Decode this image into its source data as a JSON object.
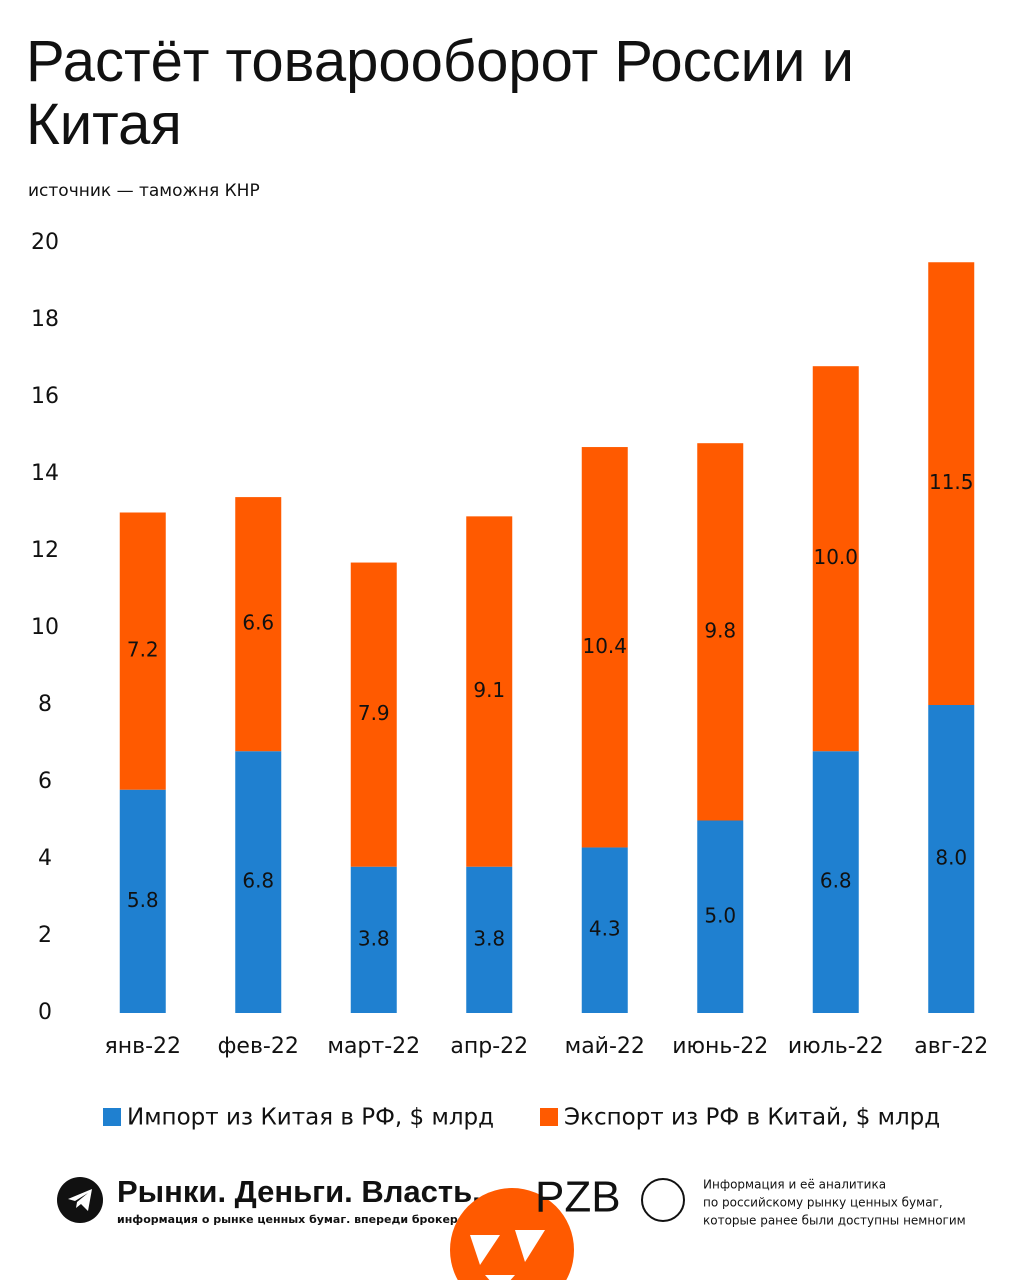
{
  "chart_data": {
    "type": "stacked_bar",
    "title": "Растёт товарооборот России и Китая",
    "subtitle": "источник — таможня КНР",
    "categories": [
      "янв-22",
      "фев-22",
      "март-22",
      "апр-22",
      "май-22",
      "июнь-22",
      "июль-22",
      "авг-22"
    ],
    "series": [
      {
        "name": "Импорт из Китая в РФ, $ млрд",
        "color": "#1f80d0",
        "values": [
          5.8,
          6.8,
          3.8,
          3.8,
          4.3,
          5.0,
          6.8,
          8.0
        ],
        "value_labels": [
          "5.8",
          "6.8",
          "3.8",
          "3.8",
          "4.3",
          "5.0",
          "6.8",
          "8.0"
        ]
      },
      {
        "name": "Экспорт из РФ в Китай, $ млрд",
        "color": "#ff5a00",
        "values": [
          7.2,
          6.6,
          7.9,
          9.1,
          10.4,
          9.8,
          10.0,
          11.5
        ],
        "value_labels": [
          "7.2",
          "6.6",
          "7.9",
          "9.1",
          "10.4",
          "9.8",
          "10.0",
          "11.5"
        ]
      }
    ],
    "ylim": [
      0,
      20
    ],
    "yticks": [
      0,
      2,
      4,
      6,
      8,
      10,
      12,
      14,
      16,
      18,
      20
    ],
    "grid": false,
    "legend": "bottom"
  },
  "footer": {
    "brand": "Рынки. Деньги. Власть.",
    "tagline": "информация о рынке ценных бумаг. впереди брокеров и банков.",
    "logo": "PZB",
    "description": [
      "Информация и её аналитика",
      "по российскому рынку ценных бумаг,",
      "которые ранее были доступны немногим"
    ]
  }
}
